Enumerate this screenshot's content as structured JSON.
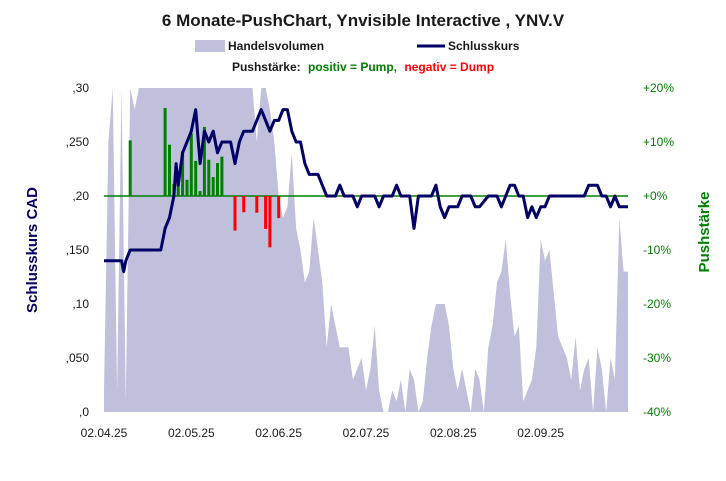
{
  "chart_data": {
    "type": "line",
    "title": "6 Monate-PushChart,  Ynvisible  Interactive , YNV.V",
    "legend": {
      "volume_label": "Handelsvolumen",
      "close_label": "Schlusskurs",
      "placement": "top-center"
    },
    "subtitle": {
      "prefix": "Pushstärke:",
      "positive": "positiv = Pump,",
      "negative": "negativ = Dump"
    },
    "ylabel_left": "Schlusskurs CAD",
    "ylabel_right": "Pushstärke",
    "y_left_ticks": [
      ",0",
      ",050",
      ",10",
      ",150",
      ",20",
      ",250",
      ",30"
    ],
    "y_left_lim": [
      0,
      0.3
    ],
    "y_right_ticks": [
      "-40%",
      "-30%",
      "-20%",
      "-10%",
      "+0%",
      "+10%",
      "+20%"
    ],
    "y_right_lim": [
      -40,
      20
    ],
    "x_ticks": [
      "02.04.25",
      "02.05.25",
      "02.06.25",
      "02.07.25",
      "02.08.25",
      "02.09.25"
    ],
    "x_range": [
      0,
      120
    ],
    "x_tick_positions": [
      0,
      20,
      40,
      60,
      80,
      100
    ],
    "grid": false,
    "colors": {
      "volume": "#c0c0dc",
      "close": "#000066",
      "positive": "#008000",
      "negative": "#ff0000",
      "zero_line": "#008000",
      "left_axis": "#000066",
      "right_axis": "#008000"
    },
    "series": [
      {
        "name": "Schlusskurs",
        "axis": "left",
        "points": [
          [
            0,
            0.14
          ],
          [
            4,
            0.14
          ],
          [
            4.5,
            0.13
          ],
          [
            5,
            0.14
          ],
          [
            6,
            0.15
          ],
          [
            8,
            0.15
          ],
          [
            13,
            0.15
          ],
          [
            14,
            0.17
          ],
          [
            15,
            0.18
          ],
          [
            16,
            0.2
          ],
          [
            16.5,
            0.23
          ],
          [
            17,
            0.21
          ],
          [
            18,
            0.24
          ],
          [
            19,
            0.25
          ],
          [
            20,
            0.26
          ],
          [
            21,
            0.28
          ],
          [
            22,
            0.23
          ],
          [
            23,
            0.26
          ],
          [
            24,
            0.25
          ],
          [
            25,
            0.26
          ],
          [
            26,
            0.24
          ],
          [
            27,
            0.25
          ],
          [
            29,
            0.25
          ],
          [
            30,
            0.23
          ],
          [
            31,
            0.25
          ],
          [
            32,
            0.26
          ],
          [
            33,
            0.26
          ],
          [
            34,
            0.26
          ],
          [
            35,
            0.27
          ],
          [
            36,
            0.28
          ],
          [
            37,
            0.27
          ],
          [
            38,
            0.26
          ],
          [
            39,
            0.27
          ],
          [
            40,
            0.27
          ],
          [
            41,
            0.28
          ],
          [
            42,
            0.28
          ],
          [
            43,
            0.26
          ],
          [
            44,
            0.25
          ],
          [
            45,
            0.25
          ],
          [
            46,
            0.23
          ],
          [
            47,
            0.22
          ],
          [
            48,
            0.22
          ],
          [
            49,
            0.22
          ],
          [
            50,
            0.21
          ],
          [
            51,
            0.2
          ],
          [
            53,
            0.2
          ],
          [
            54,
            0.21
          ],
          [
            55,
            0.2
          ],
          [
            57,
            0.2
          ],
          [
            58,
            0.19
          ],
          [
            59,
            0.2
          ],
          [
            62,
            0.2
          ],
          [
            63,
            0.19
          ],
          [
            64,
            0.2
          ],
          [
            66,
            0.2
          ],
          [
            67,
            0.21
          ],
          [
            68,
            0.2
          ],
          [
            70,
            0.2
          ],
          [
            71,
            0.17
          ],
          [
            72,
            0.2
          ],
          [
            75,
            0.2
          ],
          [
            76,
            0.21
          ],
          [
            77,
            0.19
          ],
          [
            78,
            0.18
          ],
          [
            79,
            0.19
          ],
          [
            81,
            0.19
          ],
          [
            82,
            0.2
          ],
          [
            84,
            0.2
          ],
          [
            85,
            0.19
          ],
          [
            86,
            0.19
          ],
          [
            88,
            0.2
          ],
          [
            90,
            0.2
          ],
          [
            91,
            0.19
          ],
          [
            92,
            0.2
          ],
          [
            93,
            0.21
          ],
          [
            94,
            0.21
          ],
          [
            95,
            0.2
          ],
          [
            96,
            0.2
          ],
          [
            97,
            0.18
          ],
          [
            98,
            0.19
          ],
          [
            99,
            0.18
          ],
          [
            100,
            0.19
          ],
          [
            101,
            0.19
          ],
          [
            102,
            0.2
          ],
          [
            103,
            0.2
          ],
          [
            104,
            0.2
          ],
          [
            105,
            0.2
          ],
          [
            106,
            0.2
          ],
          [
            107,
            0.2
          ],
          [
            108,
            0.2
          ],
          [
            109,
            0.2
          ],
          [
            110,
            0.2
          ],
          [
            111,
            0.21
          ],
          [
            112,
            0.21
          ],
          [
            113,
            0.21
          ],
          [
            114,
            0.2
          ],
          [
            115,
            0.2
          ],
          [
            116,
            0.19
          ],
          [
            117,
            0.2
          ],
          [
            118,
            0.19
          ],
          [
            119,
            0.19
          ],
          [
            120,
            0.19
          ]
        ]
      },
      {
        "name": "Handelsvolumen",
        "axis": "left",
        "points": [
          [
            0,
            0.02
          ],
          [
            1,
            0.25
          ],
          [
            2,
            0.3
          ],
          [
            3,
            0.02
          ],
          [
            4,
            0.3
          ],
          [
            5,
            0.01
          ],
          [
            6,
            0.3
          ],
          [
            7,
            0.28
          ],
          [
            8,
            0.3
          ],
          [
            9,
            0.3
          ],
          [
            10,
            0.3
          ],
          [
            11,
            0.3
          ],
          [
            12,
            0.3
          ],
          [
            13,
            0.3
          ],
          [
            14,
            0.3
          ],
          [
            15,
            0.3
          ],
          [
            16,
            0.3
          ],
          [
            17,
            0.3
          ],
          [
            18,
            0.3
          ],
          [
            19,
            0.3
          ],
          [
            20,
            0.3
          ],
          [
            21,
            0.3
          ],
          [
            22,
            0.3
          ],
          [
            23,
            0.3
          ],
          [
            24,
            0.3
          ],
          [
            25,
            0.3
          ],
          [
            26,
            0.3
          ],
          [
            27,
            0.3
          ],
          [
            28,
            0.3
          ],
          [
            29,
            0.3
          ],
          [
            30,
            0.3
          ],
          [
            31,
            0.3
          ],
          [
            32,
            0.3
          ],
          [
            33,
            0.3
          ],
          [
            34,
            0.3
          ],
          [
            35,
            0.25
          ],
          [
            36,
            0.3
          ],
          [
            37,
            0.3
          ],
          [
            38,
            0.28
          ],
          [
            39,
            0.25
          ],
          [
            40,
            0.2
          ],
          [
            41,
            0.18
          ],
          [
            42,
            0.19
          ],
          [
            43,
            0.24
          ],
          [
            44,
            0.17
          ],
          [
            45,
            0.15
          ],
          [
            46,
            0.12
          ],
          [
            47,
            0.13
          ],
          [
            48,
            0.18
          ],
          [
            49,
            0.15
          ],
          [
            50,
            0.12
          ],
          [
            51,
            0.06
          ],
          [
            52,
            0.1
          ],
          [
            53,
            0.08
          ],
          [
            54,
            0.06
          ],
          [
            55,
            0.06
          ],
          [
            56,
            0.06
          ],
          [
            57,
            0.03
          ],
          [
            58,
            0.04
          ],
          [
            59,
            0.05
          ],
          [
            60,
            0.02
          ],
          [
            61,
            0.04
          ],
          [
            62,
            0.08
          ],
          [
            63,
            0.02
          ],
          [
            64,
            0.0
          ],
          [
            65,
            0.0
          ],
          [
            66,
            0.02
          ],
          [
            67,
            0.01
          ],
          [
            68,
            0.03
          ],
          [
            69,
            0.0
          ],
          [
            70,
            0.04
          ],
          [
            71,
            0.03
          ],
          [
            72,
            0.0
          ],
          [
            73,
            0.01
          ],
          [
            74,
            0.05
          ],
          [
            75,
            0.08
          ],
          [
            76,
            0.1
          ],
          [
            77,
            0.1
          ],
          [
            78,
            0.1
          ],
          [
            79,
            0.08
          ],
          [
            80,
            0.04
          ],
          [
            81,
            0.02
          ],
          [
            82,
            0.04
          ],
          [
            83,
            0.02
          ],
          [
            84,
            0.0
          ],
          [
            85,
            0.04
          ],
          [
            86,
            0.03
          ],
          [
            87,
            0.0
          ],
          [
            88,
            0.06
          ],
          [
            89,
            0.08
          ],
          [
            90,
            0.12
          ],
          [
            91,
            0.13
          ],
          [
            92,
            0.16
          ],
          [
            93,
            0.11
          ],
          [
            94,
            0.07
          ],
          [
            95,
            0.08
          ],
          [
            96,
            0.01
          ],
          [
            97,
            0.02
          ],
          [
            98,
            0.03
          ],
          [
            99,
            0.06
          ],
          [
            100,
            0.16
          ],
          [
            101,
            0.14
          ],
          [
            102,
            0.15
          ],
          [
            103,
            0.11
          ],
          [
            104,
            0.07
          ],
          [
            105,
            0.06
          ],
          [
            106,
            0.05
          ],
          [
            107,
            0.03
          ],
          [
            108,
            0.07
          ],
          [
            109,
            0.02
          ],
          [
            110,
            0.04
          ],
          [
            111,
            0.05
          ],
          [
            112,
            0.0
          ],
          [
            113,
            0.06
          ],
          [
            114,
            0.04
          ],
          [
            115,
            0.0
          ],
          [
            116,
            0.05
          ],
          [
            117,
            0.03
          ],
          [
            118,
            0.18
          ],
          [
            119,
            0.13
          ],
          [
            120,
            0.13
          ]
        ]
      },
      {
        "name": "Pushstärke",
        "axis": "right",
        "type": "bar",
        "points": [
          [
            6,
            10.3
          ],
          [
            14,
            16.3
          ],
          [
            15,
            9.5
          ],
          [
            16,
            2.2
          ],
          [
            17,
            3.3
          ],
          [
            18,
            8.3
          ],
          [
            19,
            3.0
          ],
          [
            20,
            11.6
          ],
          [
            21,
            6.5
          ],
          [
            22,
            0.9
          ],
          [
            23,
            12.8
          ],
          [
            24,
            6.7
          ],
          [
            25,
            3.5
          ],
          [
            26,
            6.1
          ],
          [
            27,
            7.3
          ],
          [
            30,
            -6.4
          ],
          [
            32,
            -3.0
          ],
          [
            35,
            -3.1
          ],
          [
            37,
            -6.1
          ],
          [
            38,
            -9.5
          ],
          [
            40,
            -4.1
          ]
        ]
      }
    ]
  }
}
